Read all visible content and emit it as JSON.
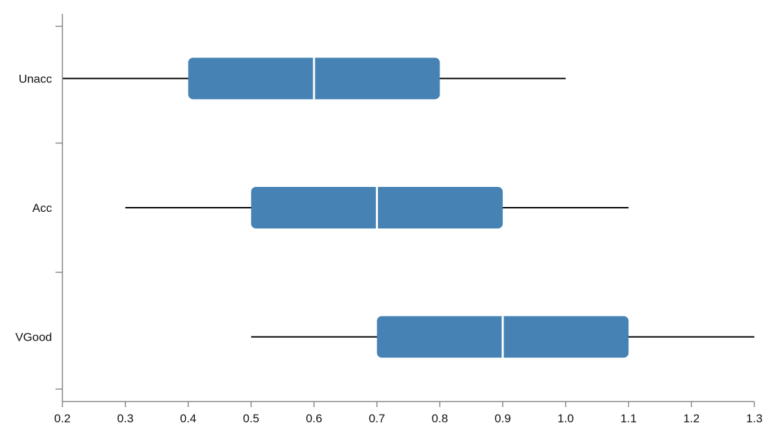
{
  "chart_data": {
    "type": "boxplot",
    "orientation": "horizontal",
    "title": "",
    "xlabel": "",
    "ylabel": "",
    "xlim": [
      0.2,
      1.3
    ],
    "x_ticks": [
      "0.2",
      "0.3",
      "0.4",
      "0.5",
      "0.6",
      "0.7",
      "0.8",
      "0.9",
      "1.0",
      "1.1",
      "1.2",
      "1.3"
    ],
    "categories": [
      "Unacc",
      "Acc",
      "VGood"
    ],
    "boxes": [
      {
        "category": "Unacc",
        "min": 0.2,
        "q1": 0.4,
        "median": 0.6,
        "q3": 0.8,
        "max": 1.0
      },
      {
        "category": "Acc",
        "min": 0.3,
        "q1": 0.5,
        "median": 0.7,
        "q3": 0.9,
        "max": 1.1
      },
      {
        "category": "VGood",
        "min": 0.5,
        "q1": 0.7,
        "median": 0.9,
        "q3": 1.1,
        "max": 1.3
      }
    ],
    "box_color": "#4682b4",
    "median_color": "#ffffff",
    "whisker_color": "#000000",
    "grid": false
  }
}
